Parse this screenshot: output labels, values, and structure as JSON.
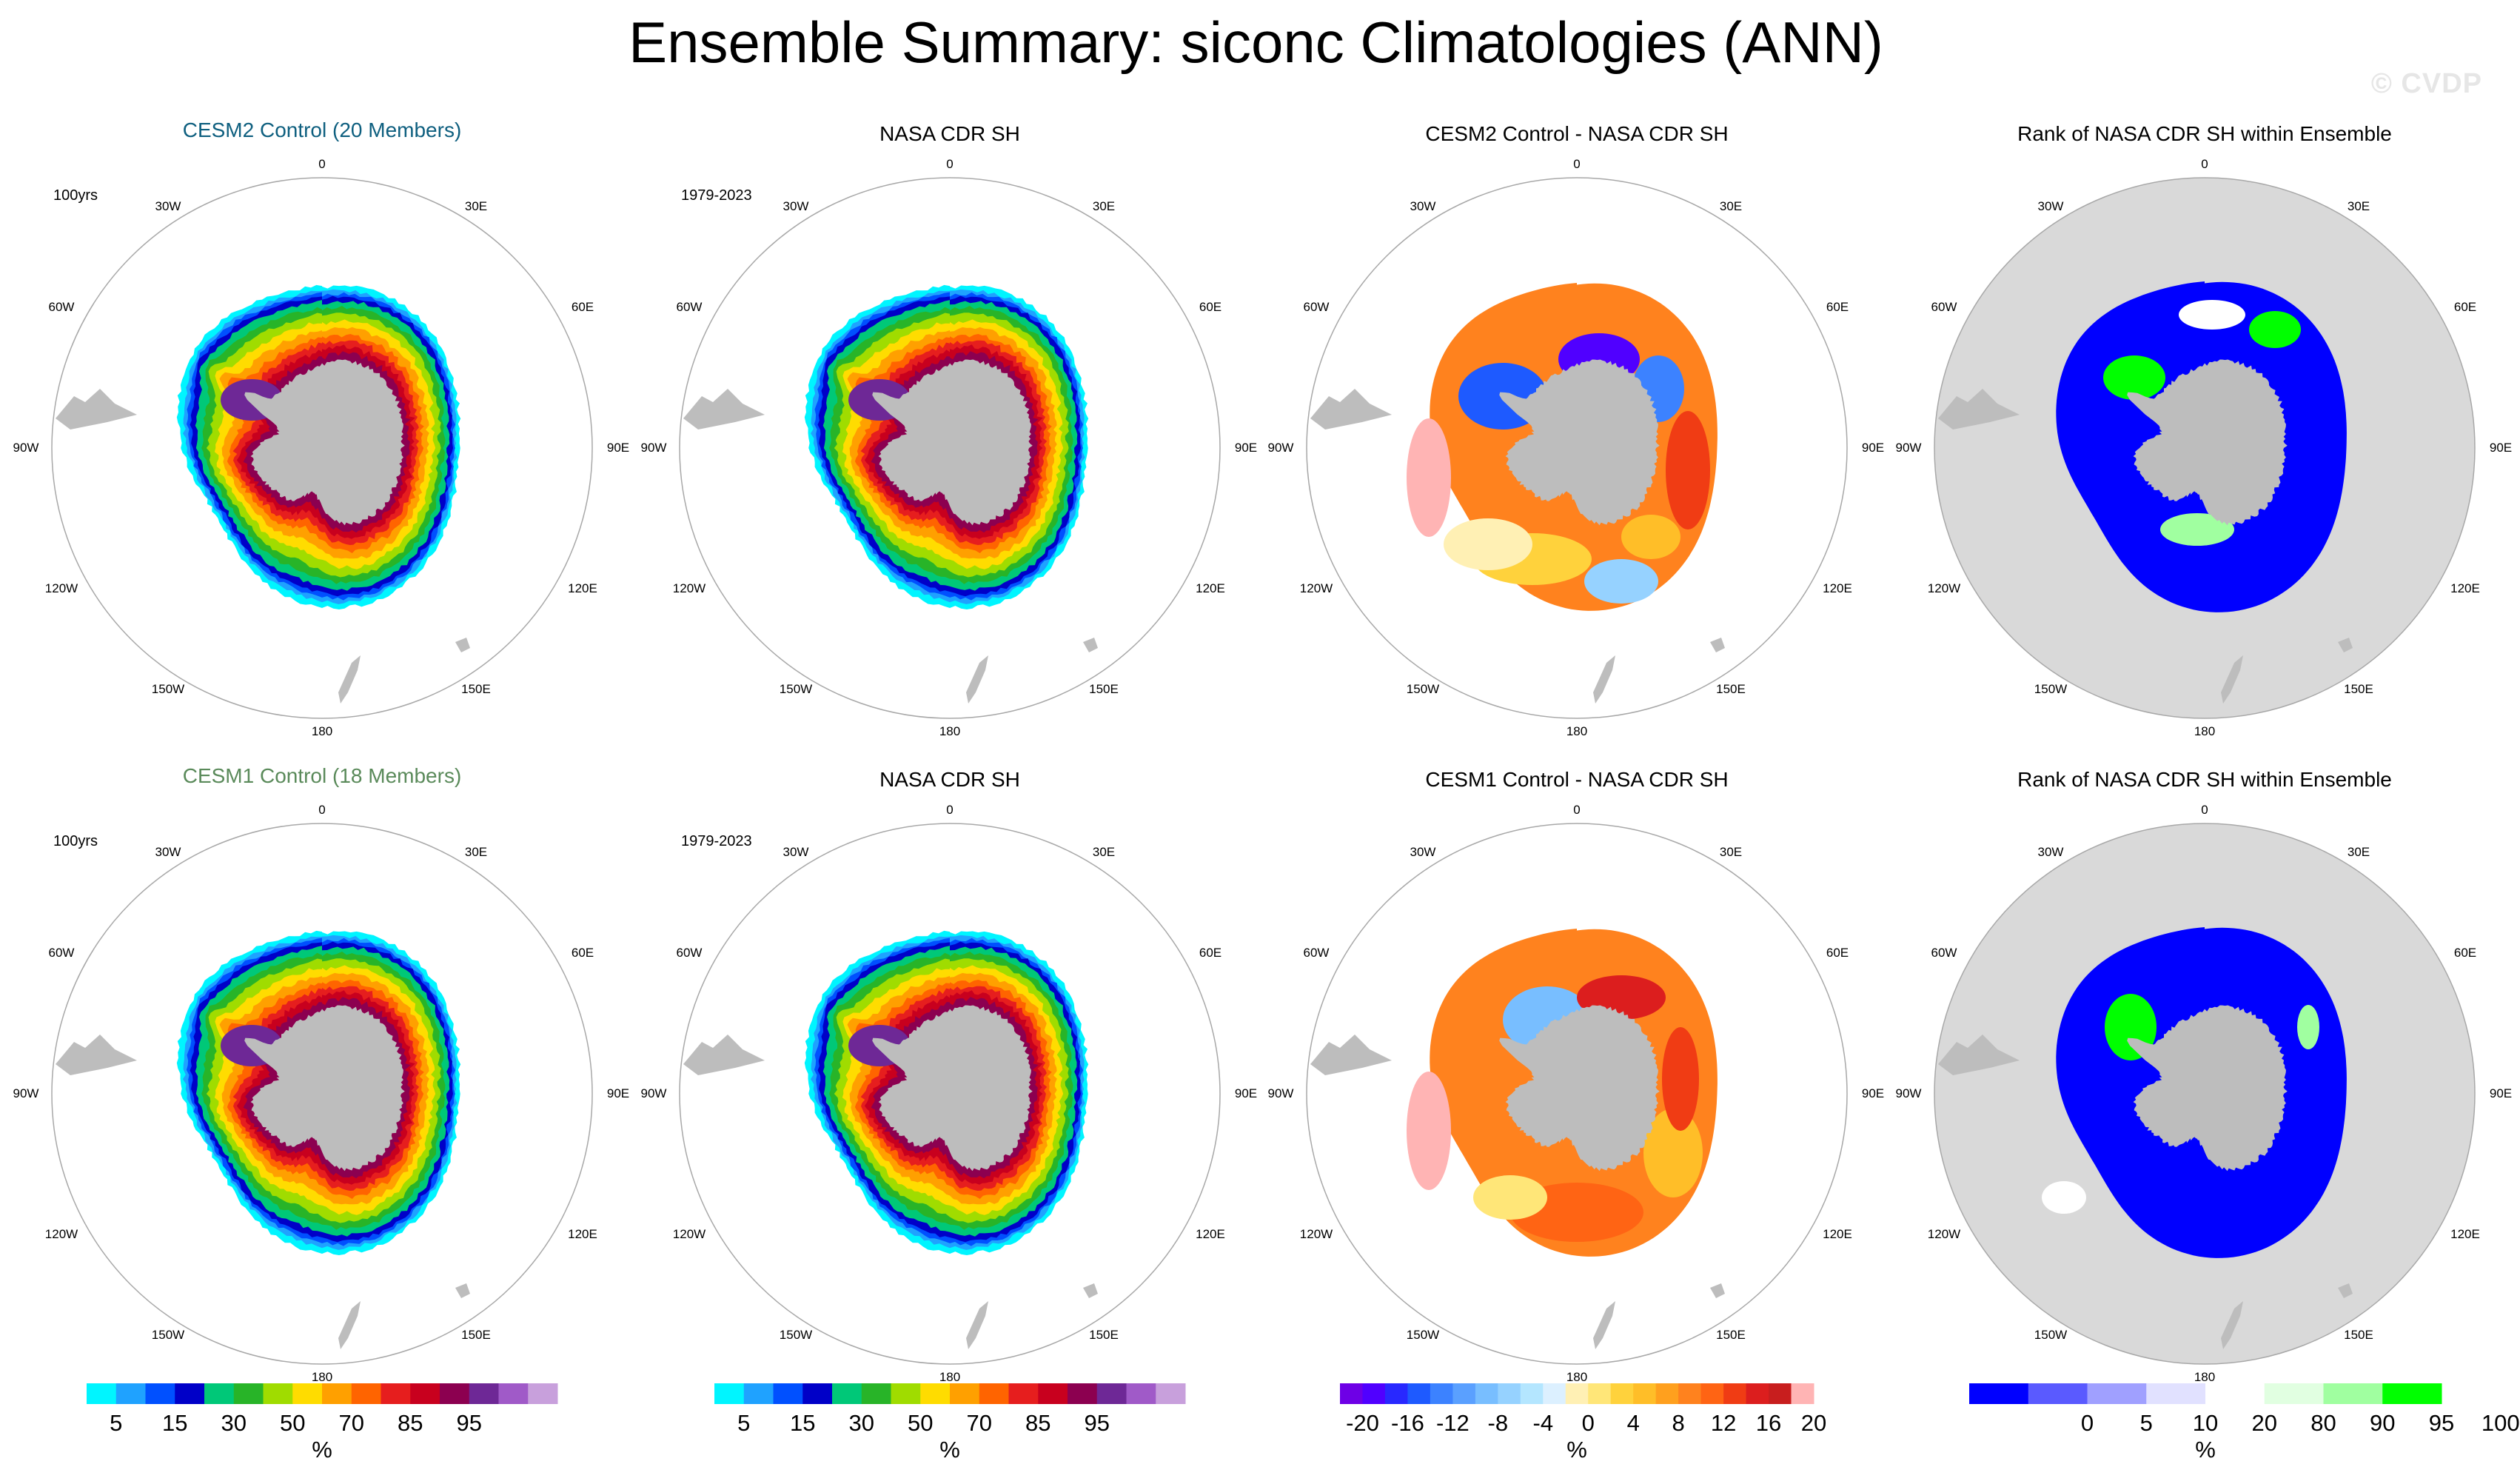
{
  "title": "Ensemble Summary: siconc Climatologies (ANN)",
  "watermark": "© CVDP",
  "rows": [
    {
      "model_title": "CESM2 Control (20 Members)",
      "model_color": "#0e5f7f",
      "model_period": "100yrs",
      "obs_title": "NASA CDR SH",
      "obs_period": "1979-2023",
      "diff_title": "CESM2 Control - NASA CDR SH",
      "rank_title": "Rank of NASA CDR SH within Ensemble"
    },
    {
      "model_title": "CESM1 Control (18 Members)",
      "model_color": "#5a8a5a",
      "model_period": "100yrs",
      "obs_title": "NASA CDR SH",
      "obs_period": "1979-2023",
      "diff_title": "CESM1 Control - NASA CDR SH",
      "rank_title": "Rank of NASA CDR SH within Ensemble"
    }
  ],
  "lon_labels": {
    "top": "0",
    "bottom": "180",
    "l1": "30W",
    "l2": "60W",
    "l3": "90W",
    "l4": "120W",
    "l5": "150W",
    "r1": "30E",
    "r2": "60E",
    "r3": "90E",
    "r4": "120E",
    "r5": "150E"
  },
  "colors": {
    "land": "#bdbdbd",
    "rank_background": "#d9d9d9",
    "circle": "#a8a8a8"
  },
  "chart_data": [
    {
      "type": "heatmap",
      "name": "siconc_climatology",
      "units": "%",
      "levels": [
        5,
        10,
        15,
        20,
        30,
        40,
        50,
        60,
        70,
        80,
        85,
        90,
        95,
        99
      ],
      "colors": [
        "#00f5ff",
        "#1fa2ff",
        "#0050ff",
        "#0000c8",
        "#00c878",
        "#28b428",
        "#a0dc00",
        "#ffdc00",
        "#ffa000",
        "#ff6400",
        "#e61e1e",
        "#c8001e",
        "#8c0050",
        "#6e2896",
        "#a05ac8",
        "#c8a0dc"
      ],
      "tick_labels": [
        "5",
        "15",
        "30",
        "50",
        "70",
        "85",
        "95"
      ],
      "tick_positions": [
        0,
        2,
        4,
        6,
        8,
        10,
        12
      ],
      "xlabel": "%"
    },
    {
      "type": "heatmap",
      "name": "difference",
      "units": "%",
      "levels": [
        -20,
        -18,
        -16,
        -14,
        -12,
        -10,
        -8,
        -6,
        -4,
        -2,
        0,
        2,
        4,
        6,
        8,
        10,
        12,
        14,
        16,
        18,
        20
      ],
      "colors": [
        "#6e00e6",
        "#5000ff",
        "#2828ff",
        "#1e5aff",
        "#3c82ff",
        "#5aa0ff",
        "#78beff",
        "#96d2ff",
        "#b4e6ff",
        "#dcf0ff",
        "#fff0b4",
        "#ffe678",
        "#ffd23c",
        "#ffbe28",
        "#ffa01e",
        "#ff821e",
        "#ff6414",
        "#f03c14",
        "#dc1e1e",
        "#c81e1e",
        "#ffb4b4"
      ],
      "tick_labels": [
        "-20",
        "-16",
        "-12",
        "-8",
        "-4",
        "0",
        "4",
        "8",
        "12",
        "16",
        "20"
      ],
      "tick_positions": [
        0,
        2,
        4,
        6,
        8,
        10,
        12,
        14,
        16,
        18,
        20
      ],
      "xlabel": "%"
    },
    {
      "type": "heatmap",
      "name": "rank",
      "units": "%",
      "levels": [
        0,
        5,
        10,
        20,
        80,
        90,
        95,
        100
      ],
      "colors": [
        "#0000ff",
        "#5a5aff",
        "#a0a0ff",
        "#e1e1ff",
        "#ffffff",
        "#e1ffe1",
        "#a0ffa0",
        "#00ff00"
      ],
      "tick_labels": [
        "0",
        "5",
        "10",
        "20",
        "80",
        "90",
        "95",
        "100"
      ],
      "tick_positions": [
        1,
        2,
        3,
        4,
        5,
        6,
        7,
        8
      ],
      "xlabel": "%"
    }
  ]
}
